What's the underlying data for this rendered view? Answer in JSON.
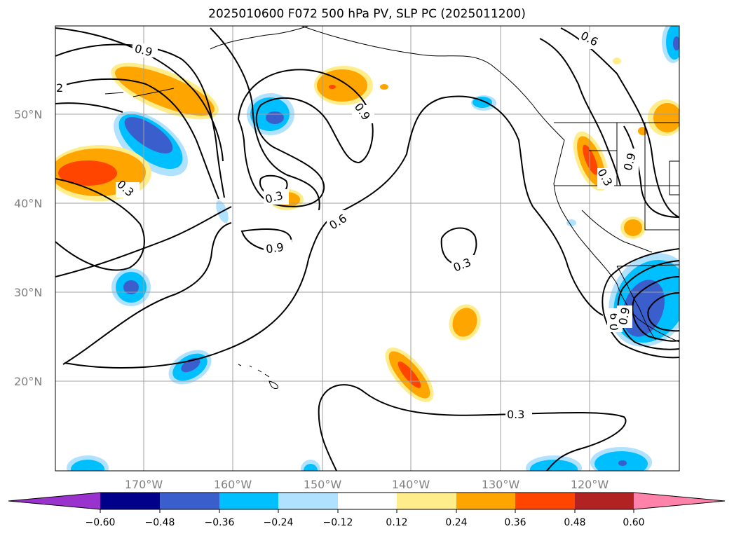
{
  "title": "2025010600 F072 500 hPa PV, SLP PC (2025011200)",
  "map": {
    "lat_labels": [
      "50°N",
      "40°N",
      "30°N",
      "20°N"
    ],
    "lon_labels": [
      "170°W",
      "160°W",
      "150°W",
      "140°W",
      "130°W",
      "120°W"
    ],
    "contour_labels": [
      "0.9",
      "2",
      "0.3",
      "0.3",
      "0.9",
      "0.6",
      "0.9",
      "0.3",
      "0.3",
      "0.6",
      "0.9",
      "0.3",
      "0.9",
      "0.9"
    ],
    "contour_color": "#000000",
    "grid_color": "#a0a0a0"
  },
  "colorbar": {
    "tick_labels": [
      "−0.60",
      "−0.48",
      "−0.36",
      "−0.24",
      "−0.12",
      "0.12",
      "0.24",
      "0.36",
      "0.48",
      "0.60"
    ],
    "colors": [
      "#9a32cd",
      "#00008b",
      "#3a5fcd",
      "#00bfff",
      "#b0e2ff",
      "#ffffff",
      "#ffec8b",
      "#ffa500",
      "#ff4500",
      "#b22222",
      "#ff82ab"
    ]
  }
}
